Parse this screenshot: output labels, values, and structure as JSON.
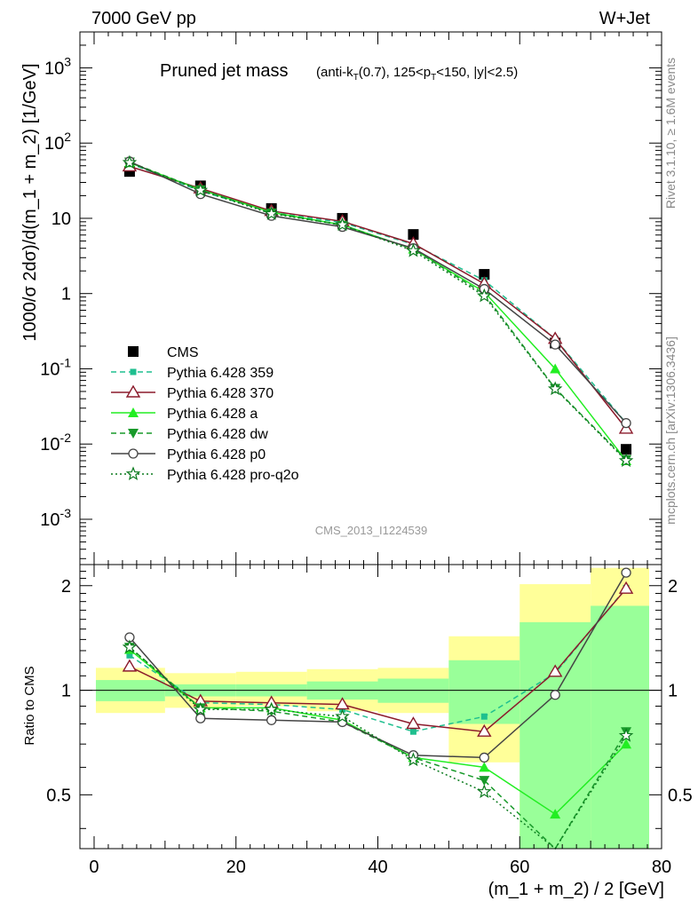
{
  "header": {
    "left": "7000 GeV pp",
    "right": "W+Jet"
  },
  "side_labels": {
    "rivet": "Rivet 3.1.10, ≥ 1.6M events",
    "source": "mcplots.cern.ch [arXiv:1306.3436]"
  },
  "colors": {
    "cms": "#000000",
    "p359": "#1fbf8f",
    "p370": "#8b1a2b",
    "a": "#22ee22",
    "dw": "#189a2a",
    "p0": "#444444",
    "proq2o": "#0b7a1e",
    "band_outer": "#ffff99",
    "band_inner": "#99ff99"
  },
  "chart_data": {
    "type": "line",
    "title": "Pruned jet mass",
    "title_sub_parts": [
      "(anti-k",
      "T",
      "(0.7), 125<p",
      "T",
      "<150, |y|<2.5)"
    ],
    "watermark": "CMS_2013_I1224539",
    "xlabel": "(m_1 + m_2) / 2 [GeV]",
    "ylabel": "1000/σ 2dσ)/d(m_1 + m_2) [1/GeV]",
    "ratio_ylabel": "Ratio to CMS",
    "xlim": [
      -2,
      80
    ],
    "ylim": [
      0.00025,
      3000
    ],
    "yscale": "log",
    "ratio_ylim": [
      0.35,
      2.3
    ],
    "x_ticks": [
      "0",
      "20",
      "40",
      "60",
      "80"
    ],
    "y_ticks": [
      "10^-3",
      "10^-2",
      "10^-1",
      "1",
      "10",
      "10^2",
      "10^3"
    ],
    "ratio_ticks": [
      "0.5",
      "1",
      "2"
    ],
    "x": [
      5,
      15,
      25,
      35,
      45,
      55,
      65,
      75
    ],
    "bin_edges": [
      0,
      10,
      20,
      30,
      40,
      50,
      60,
      70,
      80
    ],
    "legend_position": "middle-left",
    "series": [
      {
        "key": "cms",
        "name": "CMS",
        "marker": "square",
        "line": "none",
        "values": [
          42,
          27,
          13.5,
          10,
          6.1,
          1.8,
          0.22,
          0.0085
        ]
      },
      {
        "key": "p359",
        "name": "Pythia 6.428 359",
        "marker": "small-square",
        "line": "dashed",
        "values": [
          54,
          23,
          12,
          8.8,
          4.5,
          1.5,
          0.25,
          0.019
        ],
        "ratio": [
          1.26,
          0.92,
          0.91,
          0.88,
          0.76,
          0.84,
          1.12,
          1.97
        ]
      },
      {
        "key": "p370",
        "name": "Pythia 6.428 370",
        "marker": "open-triangle",
        "line": "solid",
        "values": [
          49,
          25,
          12.5,
          9.1,
          4.6,
          1.35,
          0.25,
          0.016
        ],
        "ratio": [
          1.17,
          0.93,
          0.92,
          0.91,
          0.8,
          0.76,
          1.13,
          1.96
        ]
      },
      {
        "key": "a",
        "name": "Pythia 6.428 a",
        "marker": "filled-triangle",
        "line": "solid",
        "values": [
          55,
          24,
          12,
          8.2,
          3.9,
          1.05,
          0.1,
          0.006
        ],
        "ratio": [
          1.31,
          0.89,
          0.89,
          0.82,
          0.64,
          0.6,
          0.44,
          0.7
        ]
      },
      {
        "key": "dw",
        "name": "Pythia 6.428 dw",
        "marker": "filled-triangle-down",
        "line": "dashed",
        "values": [
          56,
          24,
          11.8,
          8.1,
          3.9,
          0.98,
          0.055,
          0.0062
        ],
        "ratio": [
          1.33,
          0.89,
          0.87,
          0.81,
          0.64,
          0.55,
          0.25,
          0.76
        ]
      },
      {
        "key": "p0",
        "name": "Pythia 6.428 p0",
        "marker": "open-circle",
        "line": "solid",
        "values": [
          57,
          21,
          10.8,
          7.7,
          4.0,
          1.15,
          0.21,
          0.019
        ],
        "ratio": [
          1.42,
          0.83,
          0.82,
          0.81,
          0.65,
          0.64,
          0.97,
          2.18
        ]
      },
      {
        "key": "proq2o",
        "name": "Pythia 6.428 pro-q2o",
        "marker": "star",
        "line": "dotted",
        "values": [
          55,
          23.5,
          11.5,
          8.2,
          3.7,
          0.93,
          0.054,
          0.006
        ],
        "ratio": [
          1.33,
          0.88,
          0.88,
          0.84,
          0.63,
          0.51,
          0.25,
          0.74
        ]
      }
    ],
    "uncertainty_bands": {
      "inner_lower": [
        0.93,
        0.96,
        0.96,
        0.94,
        0.92,
        0.8,
        0.0,
        0.0
      ],
      "inner_upper": [
        1.07,
        1.04,
        1.04,
        1.06,
        1.08,
        1.22,
        1.57,
        1.75
      ],
      "outer_lower": [
        0.86,
        0.89,
        0.9,
        0.87,
        0.86,
        0.62,
        0.0,
        0.0
      ],
      "outer_upper": [
        1.16,
        1.12,
        1.13,
        1.15,
        1.16,
        1.43,
        2.02,
        2.25
      ]
    }
  }
}
